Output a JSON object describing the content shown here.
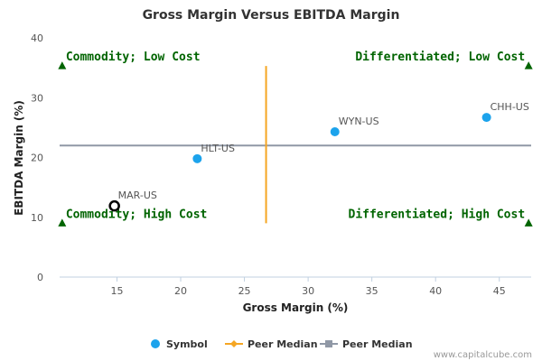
{
  "chart_data": {
    "type": "scatter",
    "title": "Gross Margin Versus EBITDA Margin",
    "xlabel": "Gross Margin (%)",
    "ylabel": "EBITDA Margin (%)",
    "xlim": [
      10.5,
      47.5
    ],
    "ylim": [
      0,
      40
    ],
    "x_ticks": [
      "15",
      "20",
      "25",
      "30",
      "35",
      "40",
      "45"
    ],
    "y_ticks": [
      "0",
      "10",
      "20",
      "30",
      "40"
    ],
    "grid": false,
    "legend_position": "bottom",
    "points": [
      {
        "label": "HLT-US",
        "x": 21.3,
        "y": 19.8,
        "style": "filled"
      },
      {
        "label": "WYN-US",
        "x": 32.1,
        "y": 24.3,
        "style": "filled"
      },
      {
        "label": "CHH-US",
        "x": 44.0,
        "y": 26.7,
        "style": "filled"
      },
      {
        "label": "MAR-US",
        "x": 14.8,
        "y": 11.9,
        "style": "highlight"
      }
    ],
    "peer_median_x": 26.7,
    "peer_median_x_range": [
      9,
      35.3
    ],
    "peer_median_y": 22.0,
    "quadrants": [
      {
        "label": "Commodity; Low Cost",
        "position": "top-left",
        "marker_x": 10.7,
        "marker_y": 35.3
      },
      {
        "label": "Differentiated; Low Cost",
        "position": "top-right",
        "marker_x": 47.3,
        "marker_y": 35.3
      },
      {
        "label": "Commodity; High Cost",
        "position": "bottom-left",
        "marker_x": 10.7,
        "marker_y": 9.0
      },
      {
        "label": "Differentiated; High Cost",
        "position": "bottom-right",
        "marker_x": 47.3,
        "marker_y": 9.0
      }
    ],
    "legend": [
      {
        "label": "Symbol",
        "kind": "dot",
        "color": "#1ca3ec"
      },
      {
        "label": "Peer Median",
        "kind": "diamond-line",
        "color": "#f5a623"
      },
      {
        "label": "Peer Median",
        "kind": "square-line",
        "color": "#9098a6"
      }
    ],
    "colors": {
      "point": "#1ca3ec",
      "vertical_median": "#f5a623",
      "horizontal_median": "#9098a6",
      "quadrant": "#006400",
      "axis": "#c0d0e0"
    }
  },
  "credit": "www.capitalcube.com"
}
